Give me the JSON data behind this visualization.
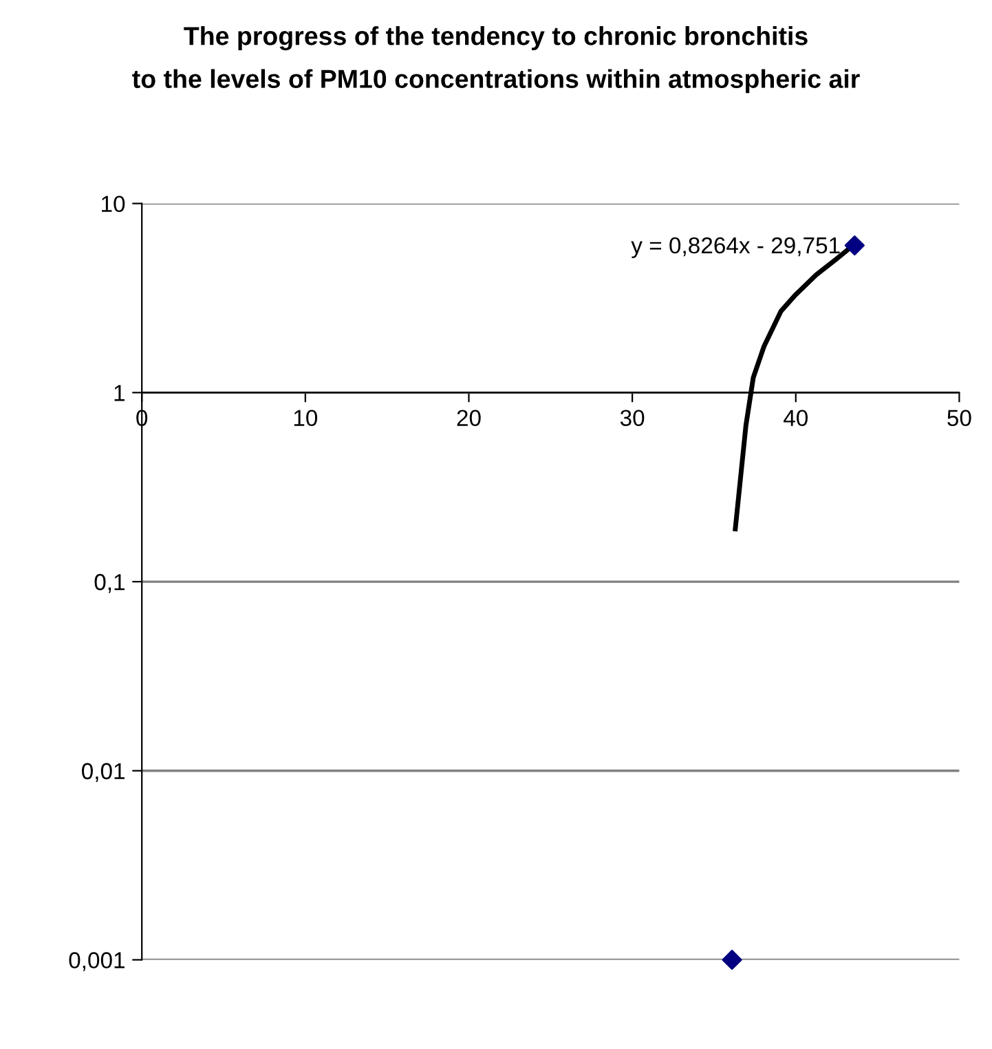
{
  "chart_data": {
    "type": "scatter",
    "title": "The progress of the tendency to chronic bronchitis\nto the levels of PM10 concentrations within atmospheric air",
    "log": "y",
    "grid": "y",
    "marker": "diamond",
    "xlim": [
      0,
      50
    ],
    "xticks": [
      0,
      10,
      20,
      30,
      40,
      50
    ],
    "ylim": [
      0.001,
      10
    ],
    "yticks": [
      {
        "value": 0.001,
        "label": "0,001"
      },
      {
        "value": 0.01,
        "label": "0,01"
      },
      {
        "value": 0.1,
        "label": "0,1"
      },
      {
        "value": 1,
        "label": "1"
      },
      {
        "value": 10,
        "label": "10"
      }
    ],
    "series": [
      {
        "color": "#000080",
        "x": [
          36.1,
          43.6
        ],
        "values": [
          0.001,
          6.0
        ]
      },
      {
        "type": "line",
        "color": "#000000",
        "marker": "none",
        "line_style": "solid",
        "x": [
          36.3,
          36.95,
          37.4,
          38.05,
          39.1,
          40.0,
          41.25,
          42.5,
          43.5
        ],
        "values": [
          0.19,
          0.67,
          1.2,
          1.75,
          2.7,
          3.3,
          4.2,
          5.1,
          6.0
        ]
      }
    ],
    "annotations": [
      "y = 0,8264x - 29,751"
    ]
  }
}
